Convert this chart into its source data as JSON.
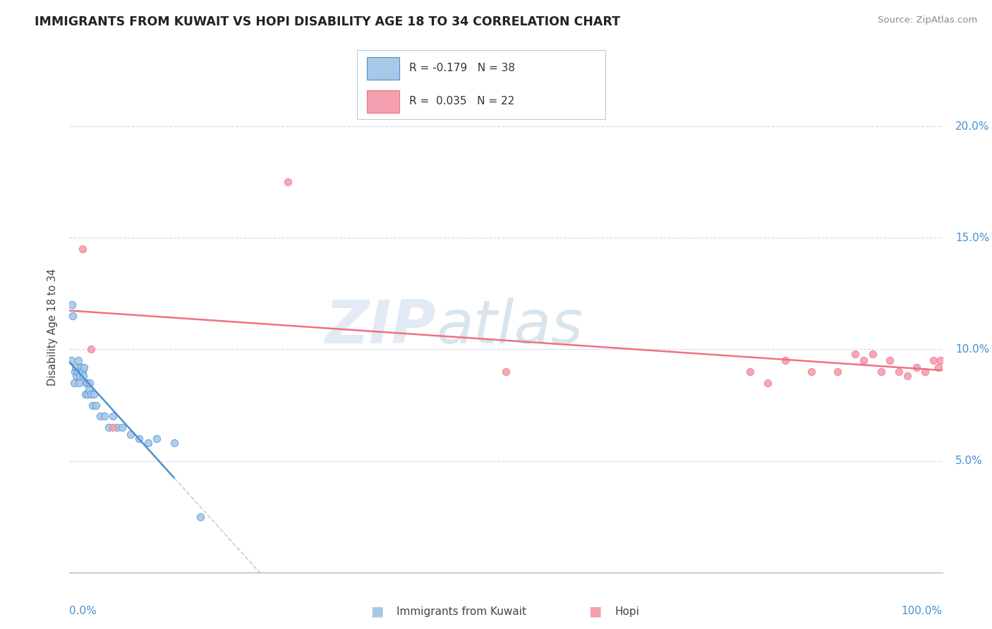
{
  "title": "IMMIGRANTS FROM KUWAIT VS HOPI DISABILITY AGE 18 TO 34 CORRELATION CHART",
  "source": "Source: ZipAtlas.com",
  "ylabel": "Disability Age 18 to 34",
  "r_kuwait": -0.179,
  "n_kuwait": 38,
  "r_hopi": 0.035,
  "n_hopi": 22,
  "xlim": [
    0,
    100
  ],
  "ylim": [
    0,
    22
  ],
  "color_kuwait": "#a8c8e8",
  "color_hopi": "#f4a0b0",
  "line_color_kuwait": "#4a90d0",
  "line_color_hopi": "#f07080",
  "line_color_dashed": "#b8d0e8",
  "kuwait_scatter_x": [
    0.2,
    0.3,
    0.4,
    0.5,
    0.6,
    0.7,
    0.8,
    0.9,
    1.0,
    1.1,
    1.2,
    1.3,
    1.4,
    1.5,
    1.6,
    1.7,
    1.8,
    1.9,
    2.0,
    2.1,
    2.2,
    2.3,
    2.5,
    2.6,
    2.8,
    3.0,
    3.5,
    4.0,
    4.5,
    5.0,
    5.5,
    6.0,
    7.0,
    8.0,
    9.0,
    10.0,
    12.0,
    15.0
  ],
  "kuwait_scatter_y": [
    9.5,
    12.0,
    11.5,
    8.5,
    9.0,
    9.2,
    8.8,
    9.0,
    9.5,
    8.5,
    8.8,
    9.2,
    9.0,
    9.0,
    8.8,
    9.2,
    8.0,
    8.5,
    8.5,
    8.0,
    8.2,
    8.5,
    8.0,
    7.5,
    8.0,
    7.5,
    7.0,
    7.0,
    6.5,
    7.0,
    6.5,
    6.5,
    6.2,
    6.0,
    5.8,
    6.0,
    5.8,
    2.5
  ],
  "hopi_scatter_x": [
    1.5,
    2.5,
    5.0,
    25.0,
    50.0,
    78.0,
    80.0,
    82.0,
    85.0,
    88.0,
    90.0,
    91.0,
    92.0,
    93.0,
    94.0,
    95.0,
    96.0,
    97.0,
    98.0,
    99.0,
    99.5,
    99.8
  ],
  "hopi_scatter_y": [
    14.5,
    10.0,
    6.5,
    17.5,
    9.0,
    9.0,
    8.5,
    9.5,
    9.0,
    9.0,
    9.8,
    9.5,
    9.8,
    9.0,
    9.5,
    9.0,
    8.8,
    9.2,
    9.0,
    9.5,
    9.2,
    9.5
  ]
}
